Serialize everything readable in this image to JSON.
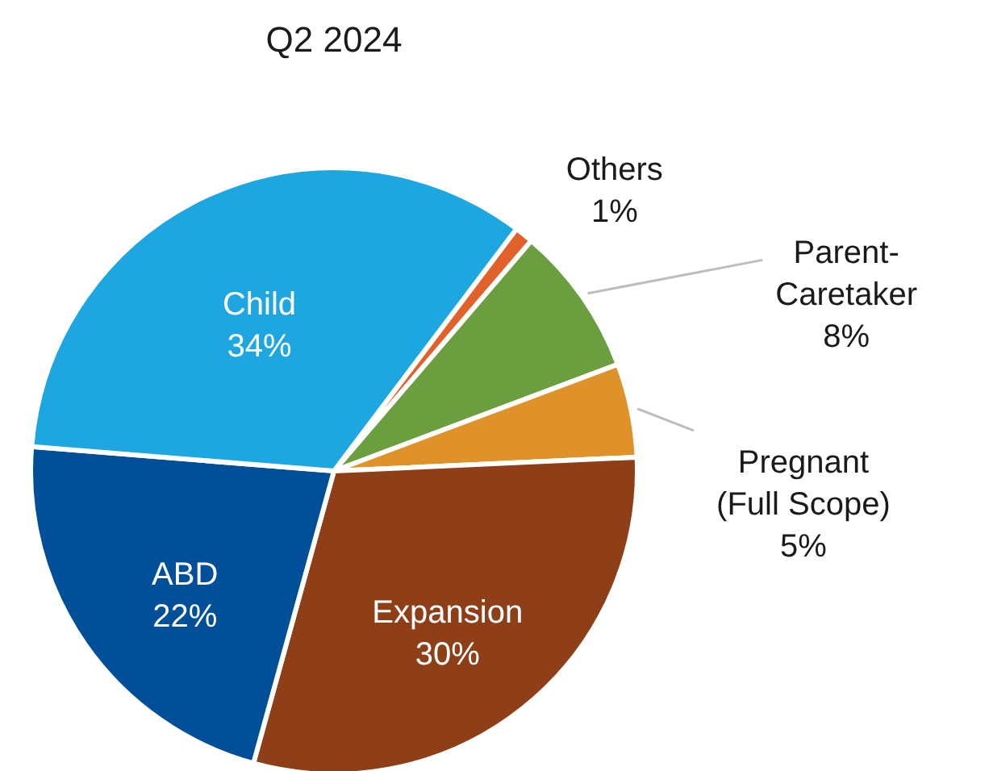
{
  "chart_data": {
    "type": "pie",
    "title": "Q2 2024",
    "categories": [
      "Others",
      "Parent-Caretaker",
      "Pregnant (Full Scope)",
      "Expansion",
      "ABD",
      "Child"
    ],
    "values": [
      1,
      8,
      5,
      30,
      22,
      34
    ],
    "value_labels": [
      "1%",
      "8%",
      "5%",
      "30%",
      "22%",
      "34%"
    ],
    "colors": [
      "#e0622a",
      "#6a9e3f",
      "#e0922a",
      "#8f3f17",
      "#004f98",
      "#1da6df"
    ]
  }
}
